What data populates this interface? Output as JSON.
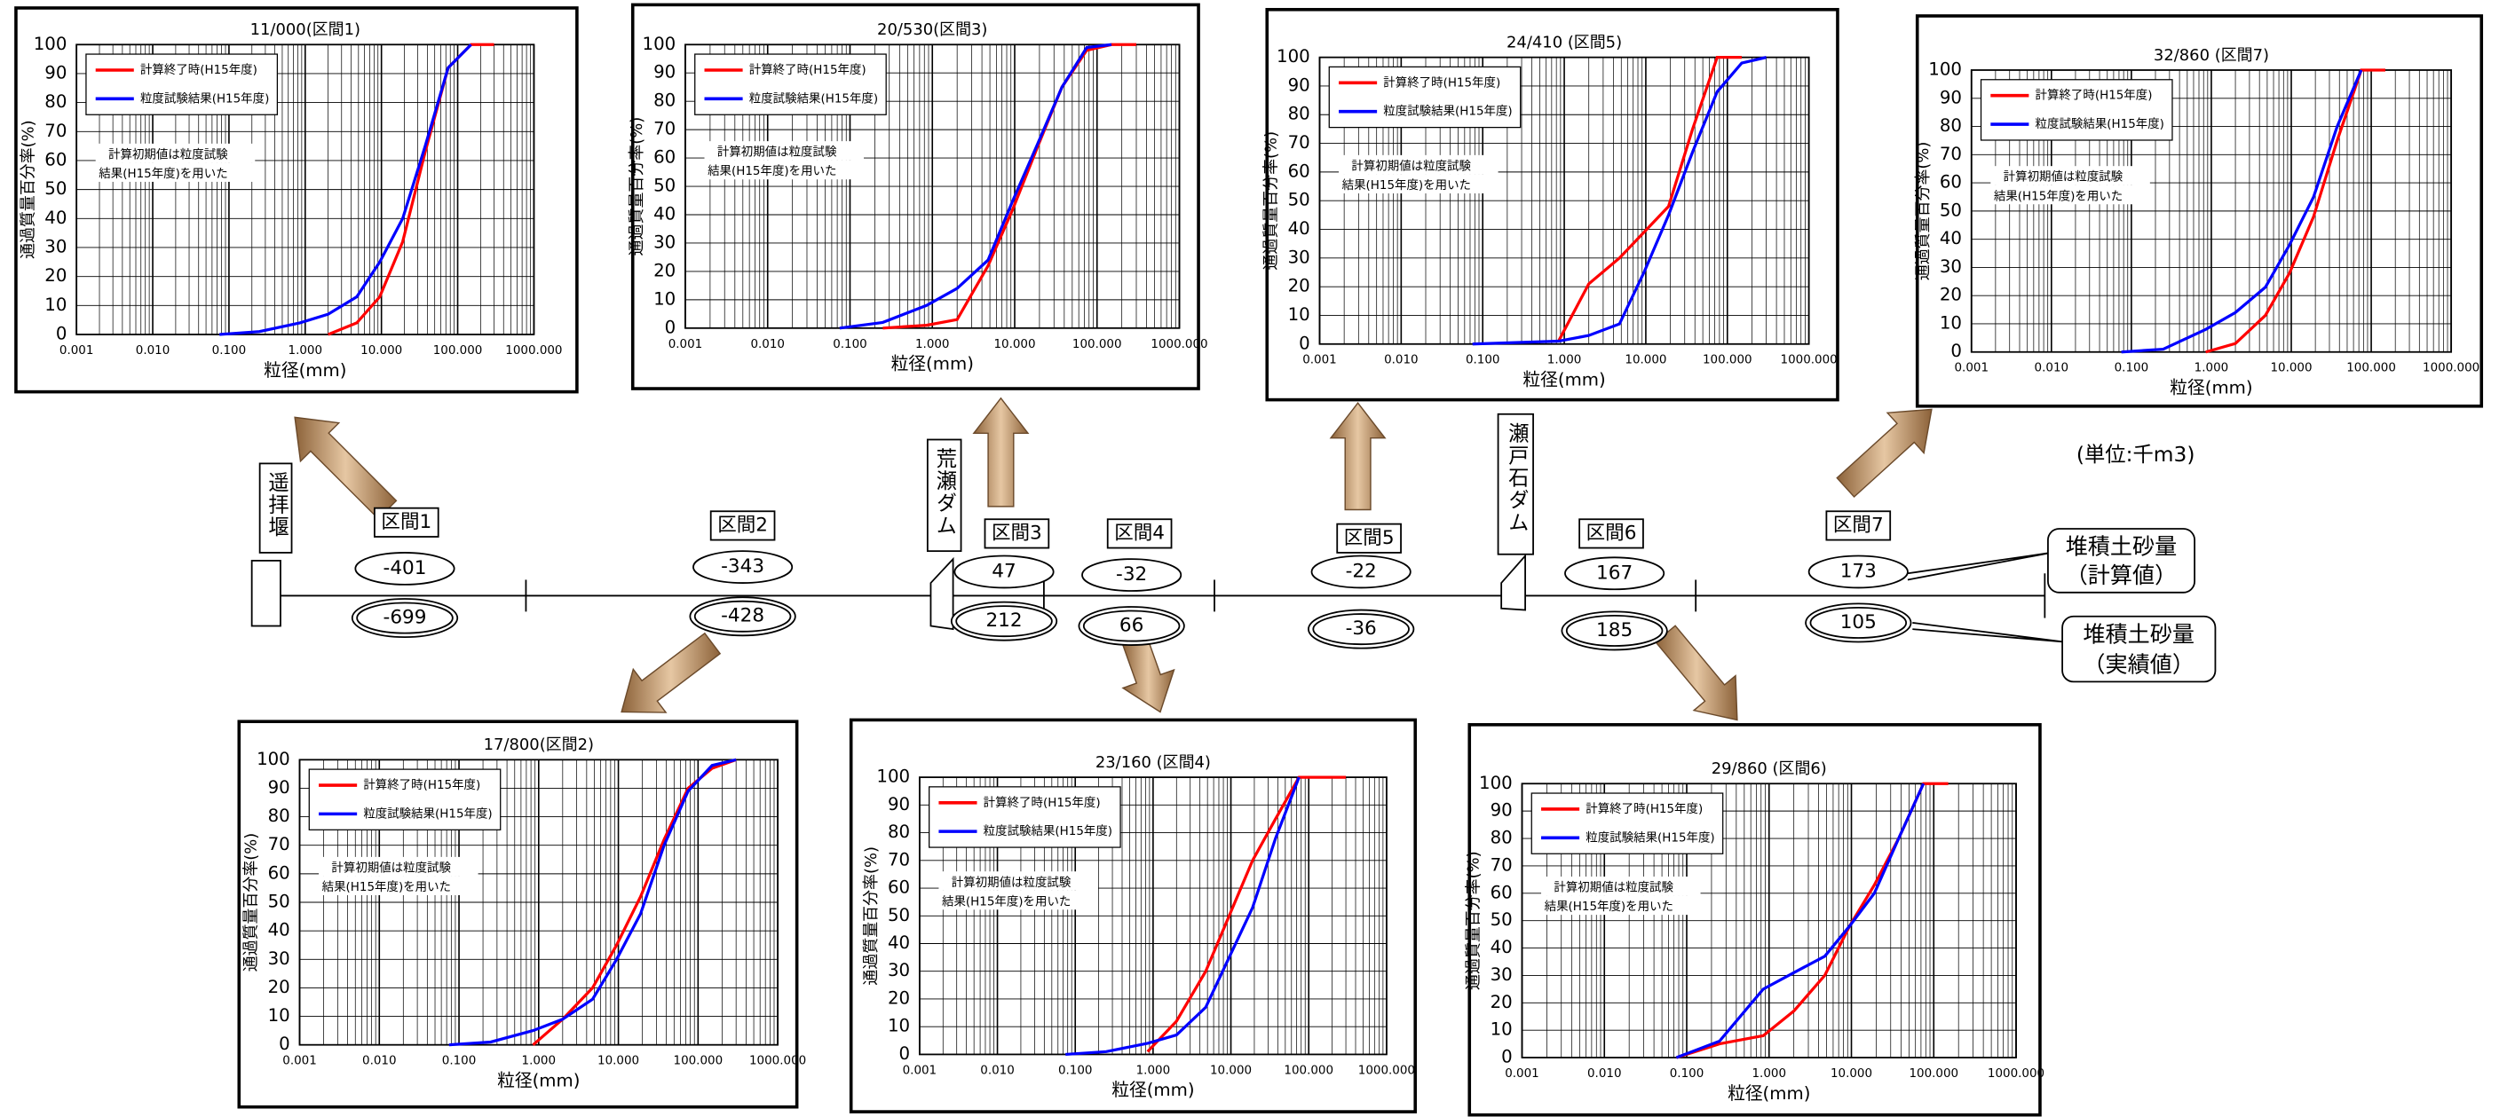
{
  "chart_data": [
    {
      "type": "line",
      "title": "11/000(区間1)",
      "xlabel": "粒径(mm)",
      "ylabel": "通過質量百分率(%)",
      "annotation": [
        "計算初期値は粒度試験",
        "結果(H15年度)を用いた"
      ],
      "x": [
        0.075,
        0.25,
        0.85,
        2,
        4.75,
        9.5,
        19,
        37.5,
        75,
        150,
        300
      ],
      "series": [
        {
          "name": "計算終了時(H15年度)",
          "color": "#ff0000",
          "values": [
            null,
            null,
            null,
            0,
            4,
            13,
            32,
            63,
            92,
            100,
            100
          ]
        },
        {
          "name": "粒度試験結果(H15年度)",
          "color": "#0000ff",
          "values": [
            0,
            1,
            4,
            7,
            13,
            25,
            40,
            65,
            92,
            100,
            null
          ]
        }
      ],
      "xscale": "log",
      "xlim": [
        0.001,
        1000
      ],
      "xticks": [
        0.001,
        {
          "value": 0.01,
          "label": "0.010"
        },
        {
          "value": 0.1,
          "label": "0.100"
        },
        {
          "value": 1,
          "label": "1.000"
        },
        {
          "value": 10,
          "label": "10.000"
        },
        {
          "value": 100,
          "label": "100.000"
        },
        {
          "value": 1000,
          "label": "1000.000"
        }
      ],
      "ylim": [
        0,
        100
      ],
      "yticks": [
        0,
        10,
        20,
        30,
        40,
        50,
        60,
        70,
        80,
        90,
        100
      ],
      "grid": true,
      "legend": "upper left"
    },
    {
      "type": "line",
      "title": "17/800(区間2)",
      "xlabel": "粒径(mm)",
      "ylabel": "通過質量百分率(%)",
      "annotation": [
        "計算初期値は粒度試験",
        "結果(H15年度)を用いた"
      ],
      "x": [
        0.075,
        0.25,
        0.85,
        2,
        4.75,
        9.5,
        19,
        37.5,
        75,
        150,
        300
      ],
      "series": [
        {
          "name": "計算終了時(H15年度)",
          "color": "#ff0000",
          "values": [
            null,
            null,
            0,
            9,
            20,
            35,
            52,
            72,
            90,
            97,
            100
          ]
        },
        {
          "name": "粒度試験結果(H15年度)",
          "color": "#0000ff",
          "values": [
            0,
            1,
            5,
            9,
            16,
            30,
            46,
            70,
            89,
            98,
            100
          ]
        }
      ],
      "xscale": "log",
      "xlim": [
        0.001,
        1000
      ],
      "xticks": [
        0.001,
        {
          "value": 0.01,
          "label": "0.010"
        },
        {
          "value": 0.1,
          "label": "0.100"
        },
        {
          "value": 1,
          "label": "1.000"
        },
        {
          "value": 10,
          "label": "10.000"
        },
        {
          "value": 100,
          "label": "100.000"
        },
        {
          "value": 1000,
          "label": "1000.000"
        }
      ],
      "ylim": [
        0,
        100
      ],
      "yticks": [
        0,
        10,
        20,
        30,
        40,
        50,
        60,
        70,
        80,
        90,
        100
      ],
      "grid": true,
      "legend": "upper left"
    },
    {
      "type": "line",
      "title": "20/530(区間3)",
      "xlabel": "粒径(mm)",
      "ylabel": "通過質量百分率(%)",
      "annotation": [
        "計算初期値は粒度試験",
        "結果(H15年度)を用いた"
      ],
      "x": [
        0.075,
        0.25,
        0.85,
        2,
        4.75,
        9.5,
        19,
        37.5,
        75,
        150,
        300
      ],
      "series": [
        {
          "name": "計算終了時(H15年度)",
          "color": "#ff0000",
          "values": [
            null,
            0,
            1,
            3,
            22,
            42,
            64,
            85,
            98,
            100,
            100
          ]
        },
        {
          "name": "粒度試験結果(H15年度)",
          "color": "#0000ff",
          "values": [
            0,
            2,
            8,
            14,
            24,
            45,
            65,
            85,
            99,
            100,
            null
          ]
        }
      ],
      "xscale": "log",
      "xlim": [
        0.001,
        1000
      ],
      "xticks": [
        0.001,
        {
          "value": 0.01,
          "label": "0.010"
        },
        {
          "value": 0.1,
          "label": "0.100"
        },
        {
          "value": 1,
          "label": "1.000"
        },
        {
          "value": 10,
          "label": "10.000"
        },
        {
          "value": 100,
          "label": "100.000"
        },
        {
          "value": 1000,
          "label": "1000.000"
        }
      ],
      "ylim": [
        0,
        100
      ],
      "yticks": [
        0,
        10,
        20,
        30,
        40,
        50,
        60,
        70,
        80,
        90,
        100
      ],
      "grid": true,
      "legend": "upper left"
    },
    {
      "type": "line",
      "title": "23/160 (区間4)",
      "xlabel": "粒径(mm)",
      "ylabel": "通過質量百分率(%)",
      "annotation": [
        "計算初期値は粒度試験",
        "結果(H15年度)を用いた"
      ],
      "x": [
        0.075,
        0.25,
        0.85,
        2,
        4.75,
        9.5,
        19,
        37.5,
        75,
        150,
        300
      ],
      "series": [
        {
          "name": "計算終了時(H15年度)",
          "color": "#ff0000",
          "values": [
            null,
            null,
            1,
            12,
            30,
            50,
            70,
            85,
            100,
            100,
            100
          ]
        },
        {
          "name": "粒度試験結果(H15年度)",
          "color": "#0000ff",
          "values": [
            0,
            1,
            4,
            7,
            17,
            35,
            53,
            78,
            100,
            null,
            null
          ]
        }
      ],
      "xscale": "log",
      "xlim": [
        0.001,
        1000
      ],
      "xticks": [
        0.001,
        {
          "value": 0.01,
          "label": "0.010"
        },
        {
          "value": 0.1,
          "label": "0.100"
        },
        {
          "value": 1,
          "label": "1.000"
        },
        {
          "value": 10,
          "label": "10.000"
        },
        {
          "value": 100,
          "label": "100.000"
        },
        {
          "value": 1000,
          "label": "1000.000"
        }
      ],
      "ylim": [
        0,
        100
      ],
      "yticks": [
        0,
        10,
        20,
        30,
        40,
        50,
        60,
        70,
        80,
        90,
        100
      ],
      "grid": true,
      "legend": "upper left"
    },
    {
      "type": "line",
      "title": "24/410 (区間5)",
      "xlabel": "粒径(mm)",
      "ylabel": "通過質量百分率(%)",
      "annotation": [
        "計算初期値は粒度試験",
        "結果(H15年度)を用いた"
      ],
      "x": [
        0.075,
        0.25,
        0.85,
        2,
        4.75,
        9.5,
        19,
        37.5,
        75,
        150,
        300
      ],
      "series": [
        {
          "name": "計算終了時(H15年度)",
          "color": "#ff0000",
          "values": [
            null,
            null,
            1,
            21,
            30,
            39,
            48,
            75,
            100,
            100,
            null
          ]
        },
        {
          "name": "粒度試験結果(H15年度)",
          "color": "#0000ff",
          "values": [
            0,
            0.5,
            1,
            3,
            7,
            25,
            45,
            67,
            88,
            98,
            100
          ]
        }
      ],
      "xscale": "log",
      "xlim": [
        0.001,
        1000
      ],
      "xticks": [
        0.001,
        {
          "value": 0.01,
          "label": "0.010"
        },
        {
          "value": 0.1,
          "label": "0.100"
        },
        {
          "value": 1,
          "label": "1.000"
        },
        {
          "value": 10,
          "label": "10.000"
        },
        {
          "value": 100,
          "label": "100.000"
        },
        {
          "value": 1000,
          "label": "1000.000"
        }
      ],
      "ylim": [
        0,
        100
      ],
      "yticks": [
        0,
        10,
        20,
        30,
        40,
        50,
        60,
        70,
        80,
        90,
        100
      ],
      "grid": true,
      "legend": "upper left"
    },
    {
      "type": "line",
      "title": "29/860 (区間6)",
      "xlabel": "粒径(mm)",
      "ylabel": "通過質量百分率(%)",
      "annotation": [
        "計算初期値は粒度試験",
        "結果(H15年度)を用いた"
      ],
      "x": [
        0.075,
        0.25,
        0.85,
        2,
        4.75,
        9.5,
        19,
        37.5,
        75,
        150,
        300
      ],
      "series": [
        {
          "name": "計算終了時(H15年度)",
          "color": "#ff0000",
          "values": [
            0,
            5,
            8,
            17,
            30,
            48,
            63,
            80,
            100,
            100,
            null
          ]
        },
        {
          "name": "粒度試験結果(H15年度)",
          "color": "#0000ff",
          "values": [
            0,
            6,
            25,
            31,
            37,
            48,
            60,
            80,
            100,
            null,
            null
          ]
        }
      ],
      "xscale": "log",
      "xlim": [
        0.001,
        1000
      ],
      "xticks": [
        0.001,
        {
          "value": 0.01,
          "label": "0.010"
        },
        {
          "value": 0.1,
          "label": "0.100"
        },
        {
          "value": 1,
          "label": "1.000"
        },
        {
          "value": 10,
          "label": "10.000"
        },
        {
          "value": 100,
          "label": "100.000"
        },
        {
          "value": 1000,
          "label": "1000.000"
        }
      ],
      "ylim": [
        0,
        100
      ],
      "yticks": [
        0,
        10,
        20,
        30,
        40,
        50,
        60,
        70,
        80,
        90,
        100
      ],
      "grid": true,
      "legend": "upper left"
    },
    {
      "type": "line",
      "title": "32/860 (区間7)",
      "xlabel": "粒径(mm)",
      "ylabel": "通過質量百分率(%)",
      "annotation": [
        "計算初期値は粒度試験",
        "結果(H15年度)を用いた"
      ],
      "x": [
        0.075,
        0.25,
        0.85,
        2,
        4.75,
        9.5,
        19,
        37.5,
        75,
        150,
        300
      ],
      "series": [
        {
          "name": "計算終了時(H15年度)",
          "color": "#ff0000",
          "values": [
            null,
            null,
            0,
            3,
            13,
            28,
            48,
            75,
            100,
            100,
            null
          ]
        },
        {
          "name": "粒度試験結果(H15年度)",
          "color": "#0000ff",
          "values": [
            0,
            1,
            8,
            14,
            23,
            38,
            55,
            80,
            100,
            null,
            null
          ]
        }
      ],
      "xscale": "log",
      "xlim": [
        0.001,
        1000
      ],
      "xticks": [
        0.001,
        {
          "value": 0.01,
          "label": "0.010"
        },
        {
          "value": 0.1,
          "label": "0.100"
        },
        {
          "value": 1,
          "label": "1.000"
        },
        {
          "value": 10,
          "label": "10.000"
        },
        {
          "value": 100,
          "label": "100.000"
        },
        {
          "value": 1000,
          "label": "1000.000"
        }
      ],
      "ylim": [
        0,
        100
      ],
      "yticks": [
        0,
        10,
        20,
        30,
        40,
        50,
        60,
        70,
        80,
        90,
        100
      ],
      "grid": true,
      "legend": "upper left"
    }
  ],
  "diagram": {
    "weir": "遥拝堰",
    "dams": [
      "荒瀬ダム",
      "瀬戸石ダム"
    ],
    "sections": [
      {
        "label": "区間1",
        "calculated": -401,
        "actual": -699
      },
      {
        "label": "区間2",
        "calculated": -343,
        "actual": -428
      },
      {
        "label": "区間3",
        "calculated": 47,
        "actual": 212
      },
      {
        "label": "区間4",
        "calculated": -32,
        "actual": 66
      },
      {
        "label": "区間5",
        "calculated": -22,
        "actual": -36
      },
      {
        "label": "区間6",
        "calculated": 167,
        "actual": 185
      },
      {
        "label": "区間7",
        "calculated": 173,
        "actual": 105
      }
    ],
    "callouts": [
      [
        "堆積土砂量",
        "（計算値）"
      ],
      [
        "堆積土砂量",
        "（実績値）"
      ]
    ],
    "unit": "(単位:千m3)"
  }
}
